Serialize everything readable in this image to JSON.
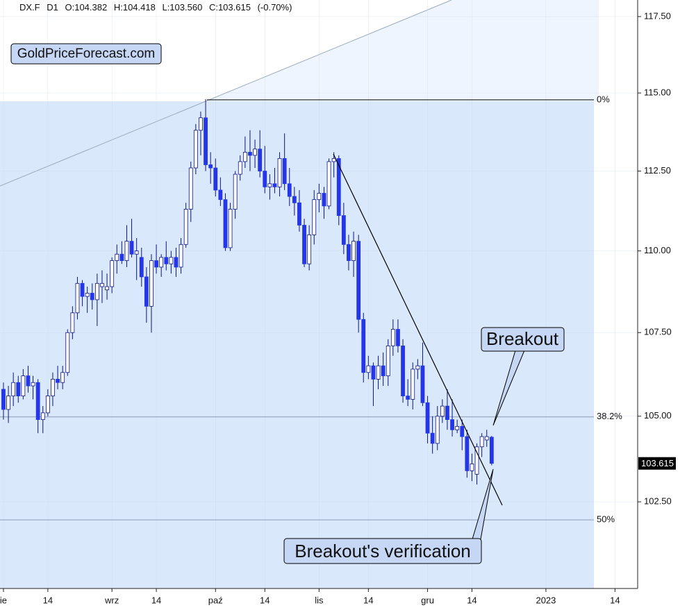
{
  "chart_data": {
    "type": "candlestick",
    "header": [
      "DX.F",
      "D1",
      "O:104.382",
      "H:104.418",
      "L:103.560",
      "C:103.615",
      "(-0.70%)"
    ],
    "logo": "GoldPriceForecast.com",
    "annotations": [
      "Breakout",
      "Breakout's verification"
    ],
    "x": [
      0,
      1,
      2,
      3,
      4,
      5,
      6,
      7,
      8,
      9,
      10,
      11,
      12,
      13,
      14,
      15,
      16,
      17,
      18,
      19,
      20,
      21,
      22,
      23,
      24,
      25,
      26,
      27,
      28,
      29,
      30,
      31,
      32,
      33,
      34,
      35,
      36,
      37,
      38,
      39,
      40,
      41,
      42,
      43,
      44,
      45,
      46,
      47,
      48,
      49,
      50,
      51,
      52,
      53,
      54,
      55,
      56,
      57,
      58,
      59,
      60,
      61,
      62,
      63,
      64,
      65,
      66,
      67,
      68,
      69,
      70,
      71,
      72,
      73,
      74,
      75,
      76,
      77,
      78,
      79,
      80,
      81,
      82,
      83,
      84,
      85,
      86,
      87,
      88,
      89,
      90,
      91,
      92,
      93,
      94,
      95,
      96,
      97,
      98,
      99
    ],
    "open": [
      105.8,
      105.2,
      105.6,
      106.0,
      105.6,
      106.2,
      105.9,
      106.0,
      104.9,
      105.1,
      105.6,
      106.1,
      106.0,
      106.3,
      107.5,
      108.1,
      109.0,
      108.6,
      108.7,
      108.5,
      108.9,
      108.8,
      108.9,
      109.7,
      109.9,
      109.7,
      110.3,
      109.9,
      109.8,
      109.2,
      108.3,
      109.7,
      109.5,
      109.8,
      109.6,
      109.8,
      109.5,
      110.2,
      111.3,
      112.6,
      113.8,
      114.2,
      112.7,
      112.6,
      111.9,
      111.6,
      110.1,
      111.3,
      112.4,
      112.8,
      113.1,
      113.0,
      113.2,
      112.5,
      112.0,
      112.1,
      112.0,
      112.9,
      112.1,
      111.7,
      111.5,
      110.8,
      109.6,
      110.5,
      111.6,
      111.8,
      111.4,
      112.8,
      112.9,
      111.1,
      110.2,
      109.7,
      110.3,
      107.9,
      106.3,
      106.5,
      106.1,
      106.5,
      106.2,
      107.1,
      107.6,
      107.1,
      105.6,
      105.5,
      106.4,
      106.5,
      105.4,
      104.5,
      104.2,
      105.0,
      105.3,
      104.9,
      104.6,
      104.7,
      104.4,
      103.4,
      103.3,
      104.1,
      104.3,
      104.382
    ],
    "high": [
      106.0,
      105.9,
      106.3,
      106.2,
      106.4,
      106.5,
      106.2,
      106.1,
      105.3,
      105.8,
      106.3,
      106.5,
      106.5,
      107.6,
      108.3,
      109.2,
      109.1,
      108.9,
      109.0,
      109.3,
      109.4,
      109.3,
      109.8,
      110.2,
      110.3,
      110.8,
      111.0,
      110.4,
      110.1,
      109.5,
      109.9,
      110.2,
      109.9,
      110.3,
      110.0,
      110.1,
      110.4,
      111.5,
      112.8,
      114.0,
      114.4,
      114.8,
      113.1,
      112.9,
      112.3,
      111.8,
      111.5,
      112.5,
      113.0,
      113.6,
      113.8,
      113.5,
      113.8,
      113.3,
      112.4,
      112.6,
      113.1,
      113.7,
      112.6,
      112.0,
      111.9,
      111.0,
      110.8,
      111.9,
      112.1,
      112.0,
      112.9,
      113.1,
      113.0,
      111.5,
      110.5,
      110.6,
      110.5,
      108.1,
      106.8,
      106.6,
      106.8,
      106.9,
      107.3,
      107.9,
      107.9,
      107.3,
      106.1,
      106.6,
      106.7,
      107.2,
      105.6,
      105.0,
      105.3,
      105.5,
      105.8,
      105.5,
      104.9,
      104.9,
      104.6,
      103.9,
      104.2,
      104.5,
      104.6,
      104.418
    ],
    "low": [
      104.9,
      104.8,
      105.3,
      105.4,
      105.5,
      105.7,
      105.5,
      104.5,
      104.5,
      105.0,
      105.3,
      105.8,
      105.8,
      106.2,
      107.3,
      107.9,
      108.3,
      108.1,
      108.2,
      107.7,
      108.4,
      108.5,
      108.7,
      109.3,
      109.6,
      109.5,
      109.8,
      109.1,
      108.9,
      107.8,
      107.5,
      109.3,
      109.2,
      109.4,
      109.3,
      109.2,
      109.3,
      110.1,
      110.9,
      112.4,
      113.0,
      112.5,
      112.1,
      111.7,
      111.4,
      110.0,
      110.0,
      111.0,
      112.2,
      112.6,
      112.5,
      112.6,
      112.3,
      111.8,
      111.6,
      111.8,
      111.7,
      111.9,
      111.4,
      111.1,
      110.6,
      109.5,
      109.4,
      110.2,
      111.2,
      111.0,
      111.3,
      112.3,
      110.8,
      109.9,
      109.4,
      109.2,
      107.5,
      106.0,
      106.1,
      105.3,
      105.8,
      105.9,
      105.9,
      106.8,
      106.9,
      105.4,
      105.3,
      105.2,
      106.1,
      105.3,
      104.2,
      103.9,
      104.0,
      104.8,
      104.6,
      104.4,
      104.5,
      104.0,
      103.2,
      103.1,
      103.0,
      103.8,
      104.1,
      103.56
    ],
    "close": [
      105.2,
      105.6,
      106.0,
      105.6,
      106.2,
      105.9,
      106.0,
      104.9,
      105.1,
      105.6,
      106.1,
      106.0,
      106.3,
      107.5,
      108.1,
      109.0,
      108.6,
      108.7,
      108.5,
      109.0,
      109.0,
      108.9,
      109.7,
      109.9,
      109.7,
      110.3,
      109.9,
      110.0,
      109.2,
      108.3,
      109.7,
      109.5,
      109.8,
      109.6,
      109.8,
      109.5,
      110.2,
      111.3,
      112.6,
      113.8,
      114.2,
      112.7,
      112.6,
      111.9,
      111.6,
      110.1,
      111.3,
      112.4,
      112.8,
      113.1,
      113.0,
      113.2,
      112.5,
      112.0,
      112.1,
      112.0,
      112.9,
      112.1,
      111.7,
      111.5,
      110.8,
      109.6,
      110.5,
      111.6,
      111.8,
      111.4,
      112.8,
      112.9,
      111.1,
      110.2,
      109.7,
      110.3,
      107.9,
      106.3,
      106.5,
      106.1,
      106.5,
      106.2,
      107.1,
      107.6,
      107.1,
      105.6,
      105.5,
      106.4,
      106.5,
      105.4,
      104.5,
      104.2,
      105.0,
      105.3,
      104.9,
      104.6,
      104.7,
      104.4,
      103.4,
      103.6,
      104.1,
      104.4,
      104.4,
      103.615
    ],
    "up_color": "#ffffff",
    "down_color": "#2436e8",
    "wick_color": "#0d1480",
    "log_scale": true,
    "grid": true,
    "xlim": [
      -0.7,
      128.6
    ],
    "xticks": [
      {
        "value": 0,
        "label": "ie"
      },
      {
        "value": 9,
        "label": "14"
      },
      {
        "value": 22,
        "label": "wrz"
      },
      {
        "value": 31,
        "label": "14"
      },
      {
        "value": 43,
        "label": "paź"
      },
      {
        "value": 53,
        "label": "14"
      },
      {
        "value": 64,
        "label": "lis"
      },
      {
        "value": 74,
        "label": "14"
      },
      {
        "value": 86,
        "label": "gru"
      },
      {
        "value": 95,
        "label": "14"
      },
      {
        "value": 110,
        "label": "2023"
      },
      {
        "value": 124,
        "label": "14"
      }
    ],
    "ylim": [
      100.03,
      118.05
    ],
    "yticks": [
      {
        "value": 102.5,
        "label": "102.50"
      },
      {
        "value": 105,
        "label": "105.00"
      },
      {
        "value": 107.5,
        "label": "107.50"
      },
      {
        "value": 110,
        "label": "110.00"
      },
      {
        "value": 112.5,
        "label": "112.50"
      },
      {
        "value": 115,
        "label": "115.00"
      },
      {
        "value": 117.5,
        "label": "117.50"
      }
    ],
    "fib_levels": [
      {
        "value": 114.78,
        "label": "0%"
      },
      {
        "value": 104.98,
        "label": "38.2%"
      },
      {
        "value": 101.98,
        "label": "50%"
      }
    ]
  }
}
